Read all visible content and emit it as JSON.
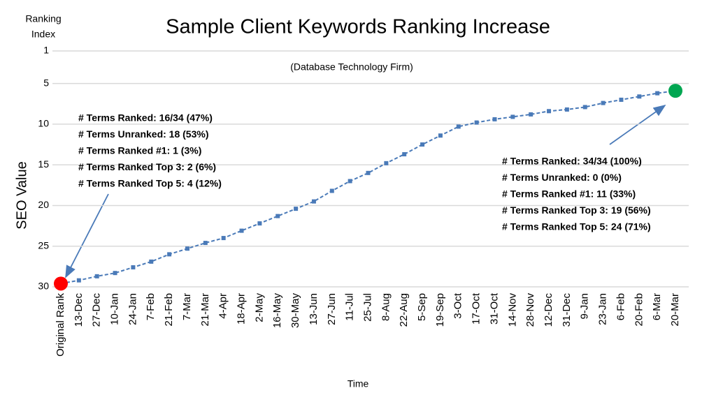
{
  "chart_data": {
    "type": "line",
    "title": "Sample Client Keywords Ranking Increase",
    "subtitle": "(Database Technology Firm)",
    "y_axis_title": [
      "Ranking",
      "Index"
    ],
    "y_label": "SEO Value",
    "x_label": "Time",
    "categories": [
      "Original Rank",
      "13-Dec",
      "27-Dec",
      "10-Jan",
      "24-Jan",
      "7-Feb",
      "21-Feb",
      "7-Mar",
      "21-Mar",
      "4-Apr",
      "18-Apr",
      "2-May",
      "16-May",
      "30-May",
      "13-Jun",
      "27-Jun",
      "11-Jul",
      "25-Jul",
      "8-Aug",
      "22-Aug",
      "5-Sep",
      "19-Sep",
      "3-Oct",
      "17-Oct",
      "31-Oct",
      "14-Nov",
      "28-Nov",
      "12-Dec",
      "31-Dec",
      "9-Jan",
      "23-Jan",
      "6-Feb",
      "20-Feb",
      "6-Mar",
      "20-Mar"
    ],
    "series": [
      {
        "name": "SEO Value",
        "color": "#4a7ab8",
        "values": [
          29.6,
          29.2,
          28.7,
          28.3,
          27.6,
          26.9,
          26.0,
          25.3,
          24.6,
          24.0,
          23.1,
          22.2,
          21.3,
          20.4,
          19.5,
          18.2,
          17.0,
          16.0,
          14.8,
          13.7,
          12.5,
          11.4,
          10.3,
          9.8,
          9.4,
          9.1,
          8.8,
          8.4,
          8.2,
          7.9,
          7.4,
          7.0,
          6.6,
          6.2,
          5.9
        ]
      }
    ],
    "start_marker_color": "#ff0000",
    "end_marker_color": "#00a651",
    "ylim": [
      1,
      30
    ],
    "y_reversed": true,
    "yticks": [
      1,
      5,
      10,
      15,
      20,
      25,
      30
    ],
    "grid": true,
    "annotations": [
      {
        "lines": [
          "# Terms Ranked: 16/34 (47%)",
          "# Terms Unranked: 18 (53%)",
          "# Terms Ranked #1: 1 (3%)",
          "# Terms Ranked Top 3: 2 (6%)",
          "# Terms Ranked Top 5: 4  (12%)"
        ]
      },
      {
        "lines": [
          "# Terms Ranked: 34/34 (100%)",
          "# Terms Unranked: 0 (0%)",
          "# Terms Ranked #1: 11 (33%)",
          "# Terms Ranked Top 3: 19 (56%)",
          "# Terms Ranked Top 5: 24 (71%)"
        ]
      }
    ]
  }
}
